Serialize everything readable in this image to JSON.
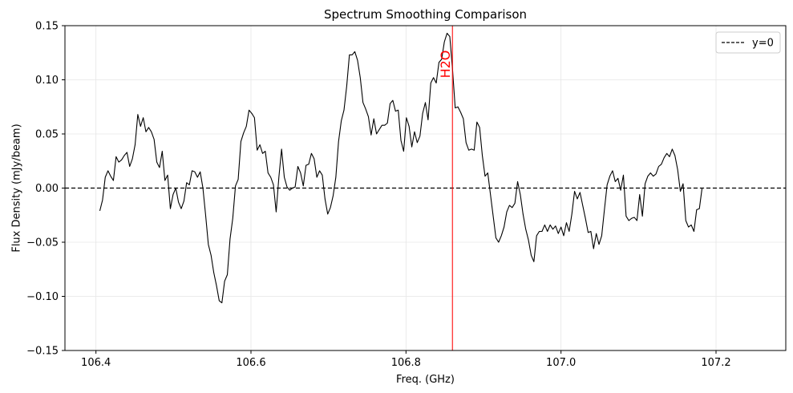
{
  "chart_data": {
    "type": "line",
    "title": "Spectrum Smoothing Comparison",
    "xlabel": "Freq. (GHz)",
    "ylabel": "Flux Density (mJy/beam)",
    "xlim": [
      106.36,
      107.29
    ],
    "ylim": [
      -0.15,
      0.15
    ],
    "xticks": [
      106.4,
      106.6,
      106.8,
      107.0,
      107.2
    ],
    "xtick_labels": [
      "106.4",
      "106.6",
      "106.8",
      "107.0",
      "107.2"
    ],
    "yticks": [
      -0.15,
      -0.1,
      -0.05,
      0.0,
      0.05,
      0.1,
      0.15
    ],
    "ytick_labels": [
      "−0.15",
      "−0.10",
      "−0.05",
      "0.00",
      "0.05",
      "0.10",
      "0.15"
    ],
    "grid": true,
    "legend": {
      "position": "top-right",
      "entries": [
        {
          "label": "y=0",
          "style": "dashed",
          "color": "#000000"
        }
      ]
    },
    "hline": {
      "y": 0,
      "color": "#000000",
      "style": "dashed",
      "label": "y=0"
    },
    "vline": {
      "x": 106.86,
      "color": "#ff0000",
      "label": "H2O"
    },
    "series": [
      {
        "color": "#000000",
        "x_start": 106.405,
        "x_step": 0.0035,
        "y": [
          -0.021,
          -0.011,
          0.01,
          0.016,
          0.011,
          0.007,
          0.029,
          0.024,
          0.026,
          0.03,
          0.033,
          0.02,
          0.027,
          0.04,
          0.068,
          0.057,
          0.065,
          0.052,
          0.056,
          0.052,
          0.045,
          0.024,
          0.019,
          0.034,
          0.007,
          0.012,
          -0.019,
          -0.006,
          0.0,
          -0.013,
          -0.019,
          -0.012,
          0.005,
          0.003,
          0.016,
          0.015,
          0.01,
          0.015,
          0.0,
          -0.025,
          -0.052,
          -0.062,
          -0.078,
          -0.09,
          -0.104,
          -0.106,
          -0.086,
          -0.08,
          -0.047,
          -0.028,
          0.002,
          0.008,
          0.043,
          0.051,
          0.057,
          0.072,
          0.069,
          0.065,
          0.035,
          0.04,
          0.032,
          0.034,
          0.014,
          0.01,
          0.003,
          -0.022,
          0.01,
          0.036,
          0.01,
          0.001,
          -0.002,
          0.0,
          0.001,
          0.02,
          0.014,
          0.002,
          0.021,
          0.022,
          0.032,
          0.027,
          0.01,
          0.016,
          0.012,
          -0.01,
          -0.024,
          -0.018,
          -0.007,
          0.01,
          0.043,
          0.062,
          0.072,
          0.094,
          0.123,
          0.123,
          0.126,
          0.118,
          0.102,
          0.079,
          0.073,
          0.066,
          0.049,
          0.064,
          0.05,
          0.054,
          0.058,
          0.058,
          0.06,
          0.078,
          0.081,
          0.071,
          0.072,
          0.044,
          0.034,
          0.065,
          0.057,
          0.038,
          0.052,
          0.042,
          0.048,
          0.069,
          0.079,
          0.063,
          0.097,
          0.102,
          0.097,
          0.116,
          0.119,
          0.135,
          0.143,
          0.14,
          0.11,
          0.074,
          0.075,
          0.07,
          0.064,
          0.042,
          0.035,
          0.036,
          0.035,
          0.061,
          0.056,
          0.03,
          0.011,
          0.014,
          -0.006,
          -0.026,
          -0.046,
          -0.05,
          -0.044,
          -0.036,
          -0.022,
          -0.016,
          -0.018,
          -0.014,
          0.006,
          -0.006,
          -0.024,
          -0.038,
          -0.048,
          -0.062,
          -0.068,
          -0.044,
          -0.04,
          -0.04,
          -0.034,
          -0.04,
          -0.034,
          -0.038,
          -0.035,
          -0.042,
          -0.036,
          -0.044,
          -0.032,
          -0.04,
          -0.024,
          -0.003,
          -0.01,
          -0.004,
          -0.016,
          -0.028,
          -0.041,
          -0.04,
          -0.056,
          -0.042,
          -0.052,
          -0.044,
          -0.02,
          0.003,
          0.011,
          0.016,
          0.006,
          0.009,
          -0.002,
          0.012,
          -0.026,
          -0.03,
          -0.028,
          -0.027,
          -0.03,
          -0.006,
          -0.026,
          0.004,
          0.011,
          0.014,
          0.011,
          0.013,
          0.02,
          0.022,
          0.028,
          0.032,
          0.029,
          0.036,
          0.03,
          0.017,
          -0.003,
          0.004,
          -0.03,
          -0.036,
          -0.034,
          -0.04,
          -0.02,
          -0.019,
          0.0
        ]
      }
    ]
  }
}
